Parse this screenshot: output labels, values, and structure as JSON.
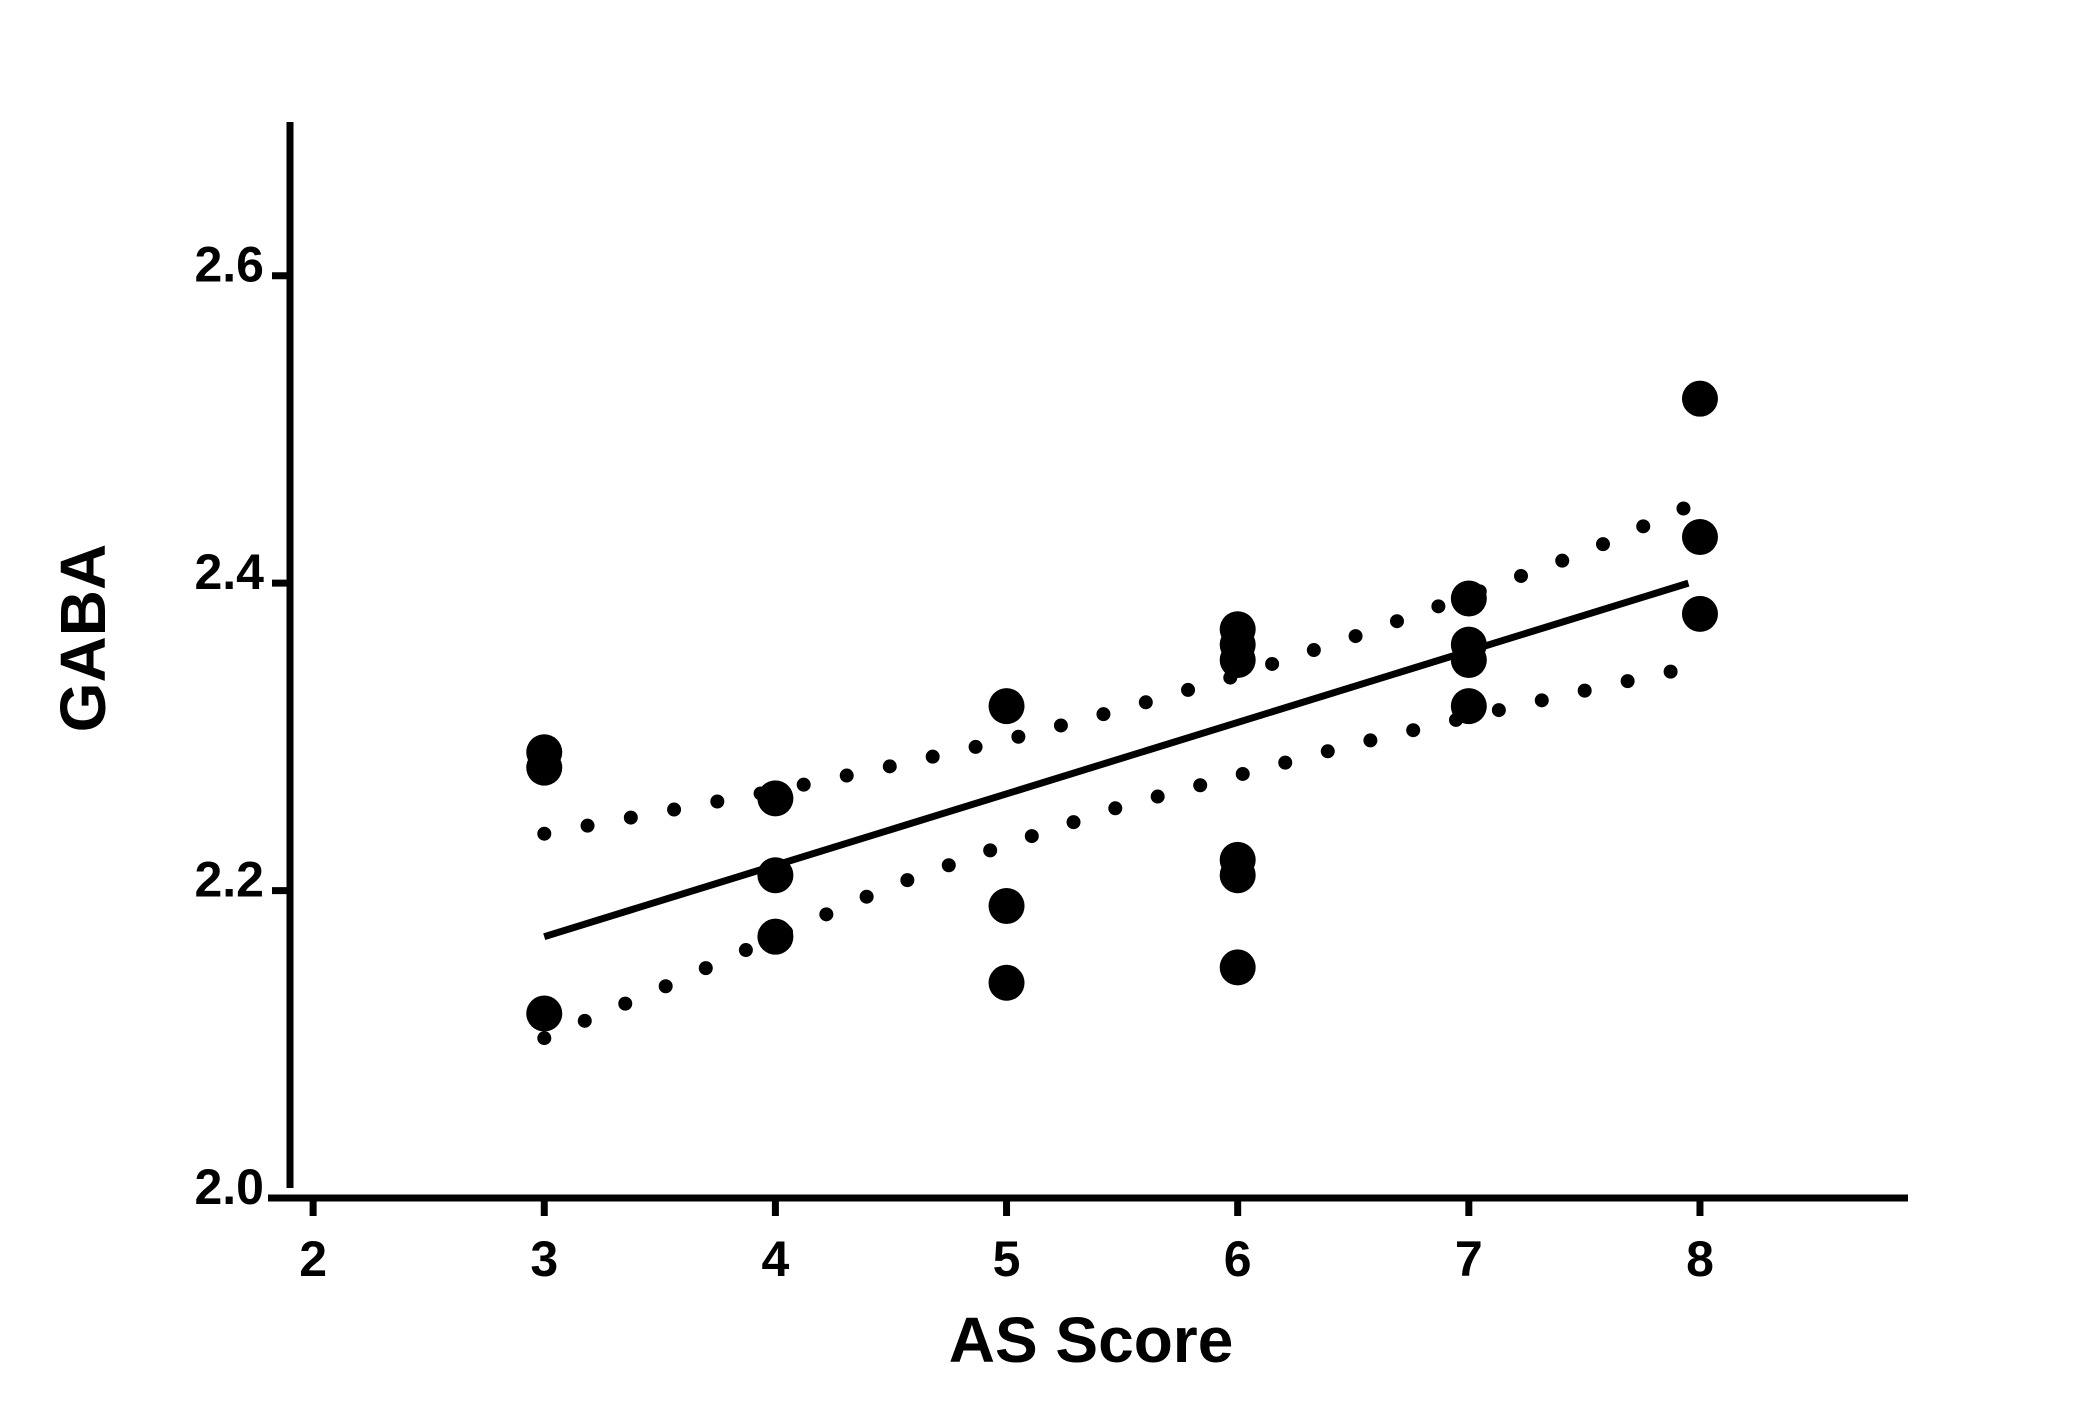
{
  "chart_data": {
    "type": "scatter",
    "title": "",
    "xlabel": "AS Score",
    "ylabel": "GABA",
    "xlim": [
      1.9,
      8.9
    ],
    "ylim": [
      2.0,
      2.7
    ],
    "x_ticks": [
      2,
      3,
      4,
      5,
      6,
      7,
      8
    ],
    "x_tick_labels": [
      "2",
      "3",
      "4",
      "5",
      "6",
      "7",
      "8"
    ],
    "y_ticks": [
      2.0,
      2.2,
      2.4,
      2.6
    ],
    "y_tick_labels": [
      "2.0",
      "2.2",
      "2.4",
      "2.6"
    ],
    "grid": false,
    "legend": "none",
    "colors": {
      "marks": "#000000"
    },
    "points": [
      {
        "x": 3,
        "y": 2.29
      },
      {
        "x": 3,
        "y": 2.28
      },
      {
        "x": 3,
        "y": 2.12
      },
      {
        "x": 4,
        "y": 2.26
      },
      {
        "x": 4,
        "y": 2.21
      },
      {
        "x": 4,
        "y": 2.17
      },
      {
        "x": 5,
        "y": 2.32
      },
      {
        "x": 5,
        "y": 2.19
      },
      {
        "x": 5,
        "y": 2.14
      },
      {
        "x": 6,
        "y": 2.37
      },
      {
        "x": 6,
        "y": 2.36
      },
      {
        "x": 6,
        "y": 2.35
      },
      {
        "x": 6,
        "y": 2.22
      },
      {
        "x": 6,
        "y": 2.21
      },
      {
        "x": 6,
        "y": 2.15
      },
      {
        "x": 7,
        "y": 2.39
      },
      {
        "x": 7,
        "y": 2.36
      },
      {
        "x": 7,
        "y": 2.35
      },
      {
        "x": 7,
        "y": 2.32
      },
      {
        "x": 8,
        "y": 2.52
      },
      {
        "x": 8,
        "y": 2.43
      },
      {
        "x": 8,
        "y": 2.38
      }
    ],
    "regression_line": {
      "x": [
        3,
        7.95
      ],
      "y": [
        2.17,
        2.4
      ],
      "style": "solid"
    },
    "confidence_band": {
      "style": "dotted",
      "upper": [
        {
          "x": 3.0,
          "y": 2.237
        },
        {
          "x": 3.5,
          "y": 2.251
        },
        {
          "x": 4.0,
          "y": 2.265
        },
        {
          "x": 4.5,
          "y": 2.281
        },
        {
          "x": 5.0,
          "y": 2.298
        },
        {
          "x": 5.5,
          "y": 2.318
        },
        {
          "x": 6.0,
          "y": 2.34
        },
        {
          "x": 6.5,
          "y": 2.365
        },
        {
          "x": 7.0,
          "y": 2.392
        },
        {
          "x": 7.5,
          "y": 2.42
        },
        {
          "x": 7.95,
          "y": 2.45
        }
      ],
      "lower": [
        {
          "x": 3.0,
          "y": 2.104
        },
        {
          "x": 3.5,
          "y": 2.136
        },
        {
          "x": 4.0,
          "y": 2.17
        },
        {
          "x": 4.5,
          "y": 2.203
        },
        {
          "x": 5.0,
          "y": 2.23
        },
        {
          "x": 5.5,
          "y": 2.255
        },
        {
          "x": 6.0,
          "y": 2.275
        },
        {
          "x": 6.5,
          "y": 2.295
        },
        {
          "x": 7.0,
          "y": 2.313
        },
        {
          "x": 7.5,
          "y": 2.33
        },
        {
          "x": 7.95,
          "y": 2.345
        }
      ]
    }
  }
}
